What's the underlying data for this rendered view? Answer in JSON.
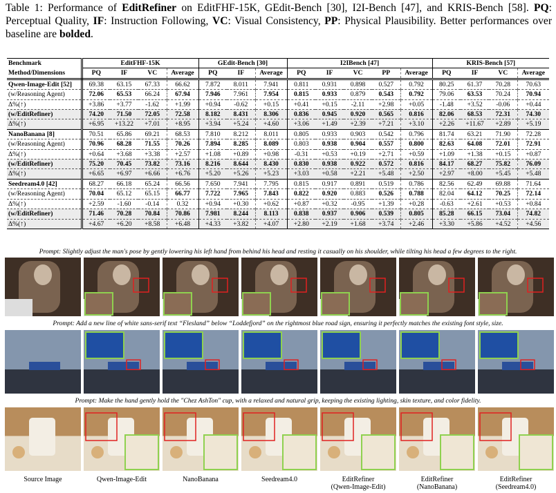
{
  "caption": {
    "parts": [
      {
        "text": "Table 1: Performance of "
      },
      {
        "text": "EditRefiner",
        "bold": true
      },
      {
        "text": " on EditFHF-15K, GEdit-Bench [30], I2I-Bench [47], and KRIS-Bench [58]. "
      },
      {
        "text": "PQ",
        "bold": true
      },
      {
        "text": ": Perceptual Quality, "
      },
      {
        "text": "IF",
        "bold": true
      },
      {
        "text": ": Instruction Following, "
      },
      {
        "text": "VC",
        "bold": true
      },
      {
        "text": ": Visual Consistency, "
      },
      {
        "text": "PP",
        "bold": true
      },
      {
        "text": ": Physical Plausibility. Better performances over baseline are "
      },
      {
        "text": "bolded",
        "bold": true
      },
      {
        "text": "."
      }
    ]
  },
  "table": {
    "label_top": "Benchmark",
    "label_bottom": "Method/Dimensions",
    "groups": [
      {
        "name": "EditFHF-15K",
        "columns": [
          "PQ",
          "IF",
          "VC",
          "Average"
        ]
      },
      {
        "name": "GEdit-Bench [30]",
        "columns": [
          "PQ",
          "IF",
          "Average"
        ]
      },
      {
        "name": "I2IBench [47]",
        "columns": [
          "PQ",
          "IF",
          "VC",
          "PP",
          "Average"
        ]
      },
      {
        "name": "KRIS-Bench [57]",
        "columns": [
          "PQ",
          "IF",
          "VC",
          "Average"
        ]
      }
    ],
    "sections": [
      {
        "rows": [
          {
            "label": "Qwen-Image-Edit [52]",
            "label_bold": true,
            "cells": [
              "69.38",
              "63.15",
              "67.33",
              "66.62",
              "7.872",
              "8.011",
              "7.941",
              "0.811",
              "0.931",
              "0.898",
              "0.527",
              "0.792",
              "80.25",
              "61.37",
              "70.28",
              "70.63"
            ]
          },
          {
            "label": "(w/Reasoning Agent)",
            "cells": [
              "72.06",
              "65.53",
              "66.24",
              "67.94",
              "7.946",
              "7.961",
              "7.954",
              "0.815",
              "0.933",
              "0.879",
              "0.543",
              "0.792",
              "79.06",
              "63.53",
              "70.24",
              "70.94"
            ],
            "bold": [
              true,
              true,
              false,
              true,
              true,
              false,
              true,
              true,
              true,
              false,
              true,
              true,
              false,
              true,
              false,
              true
            ]
          },
          {
            "label": "Δ%(↑)",
            "cells": [
              "+3.86",
              "+3.77",
              "-1.62",
              "+1.99",
              "+0.94",
              "-0.62",
              "+0.15",
              "+0.41",
              "+0.15",
              "-2.11",
              "+2.98",
              "+0.05",
              "-1.48",
              "+3.52",
              "-0.06",
              "+0.44"
            ]
          },
          {
            "label": "(w/EditRefiner)",
            "label_bold": true,
            "shaded": true,
            "cells": [
              "74.20",
              "71.50",
              "72.05",
              "72.58",
              "8.182",
              "8.431",
              "8.306",
              "0.836",
              "0.945",
              "0.920",
              "0.565",
              "0.816",
              "82.06",
              "68.53",
              "72.31",
              "74.30"
            ],
            "bold": [
              true,
              true,
              true,
              true,
              true,
              true,
              true,
              true,
              true,
              true,
              true,
              true,
              true,
              true,
              true,
              true
            ]
          },
          {
            "label": "Δ%(↑)",
            "shaded": true,
            "cells": [
              "+6.95",
              "+13.22",
              "+7.01",
              "+8.95",
              "+3.94",
              "+5.24",
              "+4.60",
              "+3.06",
              "+1.49",
              "+2.39",
              "+7.21",
              "+3.10",
              "+2.26",
              "+11.67",
              "+2.89",
              "+5.19"
            ]
          }
        ]
      },
      {
        "rows": [
          {
            "label": "NanoBanana [8]",
            "label_bold": true,
            "cells": [
              "70.51",
              "65.86",
              "69.21",
              "68.53",
              "7.810",
              "8.212",
              "8.011",
              "0.805",
              "0.933",
              "0.903",
              "0.542",
              "0.796",
              "81.74",
              "63.21",
              "71.90",
              "72.28"
            ]
          },
          {
            "label": "(w/Reasoning Agent)",
            "cells": [
              "70.96",
              "68.28",
              "71.55",
              "70.26",
              "7.894",
              "8.285",
              "8.089",
              "0.803",
              "0.938",
              "0.904",
              "0.557",
              "0.800",
              "82.63",
              "64.08",
              "72.01",
              "72.91"
            ],
            "bold": [
              true,
              true,
              true,
              true,
              true,
              true,
              true,
              false,
              true,
              true,
              true,
              true,
              true,
              true,
              true,
              true
            ]
          },
          {
            "label": "Δ%(↑)",
            "cells": [
              "+0.64",
              "+3.68",
              "+3.38",
              "+2.57",
              "+1.08",
              "+0.89",
              "+0.98",
              "-0.31",
              "+0.53",
              "+0.19",
              "+2.71",
              "+0.59",
              "+1.09",
              "+1.38",
              "+0.15",
              "+0.87"
            ]
          },
          {
            "label": "(w/EditRefiner)",
            "label_bold": true,
            "shaded": true,
            "cells": [
              "75.20",
              "70.45",
              "73.82",
              "73.16",
              "8.216",
              "8.644",
              "8.430",
              "0.830",
              "0.938",
              "0.922",
              "0.572",
              "0.816",
              "84.17",
              "68.27",
              "75.82",
              "76.09"
            ],
            "bold": [
              true,
              true,
              true,
              true,
              true,
              true,
              true,
              true,
              true,
              true,
              true,
              true,
              true,
              true,
              true,
              true
            ]
          },
          {
            "label": "Δ%(↑)",
            "shaded": true,
            "cells": [
              "+6.65",
              "+6.97",
              "+6.66",
              "+6.76",
              "+5.20",
              "+5.26",
              "+5.23",
              "+3.03",
              "+0.58",
              "+2.21",
              "+5.48",
              "+2.50",
              "+2.97",
              "+8.00",
              "+5.45",
              "+5.48"
            ]
          }
        ]
      },
      {
        "rows": [
          {
            "label": "Seedream4.0 [42]",
            "label_bold": true,
            "cells": [
              "68.27",
              "66.18",
              "65.24",
              "66.56",
              "7.650",
              "7.941",
              "7.795",
              "0.815",
              "0.917",
              "0.891",
              "0.519",
              "0.786",
              "82.56",
              "62.49",
              "69.88",
              "71.64"
            ]
          },
          {
            "label": "(w/Reasoning Agent)",
            "cells": [
              "70.04",
              "65.12",
              "65.15",
              "66.77",
              "7.722",
              "7.965",
              "7.843",
              "0.822",
              "0.920",
              "0.883",
              "0.526",
              "0.788",
              "82.04",
              "64.12",
              "70.25",
              "72.14"
            ],
            "bold": [
              true,
              false,
              false,
              true,
              true,
              true,
              true,
              true,
              true,
              false,
              true,
              true,
              false,
              true,
              true,
              true
            ]
          },
          {
            "label": "Δ%(↑)",
            "cells": [
              "+2.59",
              "-1.60",
              "-0.14",
              "0.32",
              "+0.94",
              "+0.30",
              "+0.62",
              "+0.87",
              "+0.32",
              "-0.95",
              "+1.39",
              "+0.28",
              "-0.63",
              "+2.61",
              "+0.53",
              "+0.84"
            ]
          },
          {
            "label": "(w/EditRefiner)",
            "label_bold": true,
            "shaded": true,
            "cells": [
              "71.46",
              "70.28",
              "70.84",
              "70.86",
              "7.981",
              "8.244",
              "8.113",
              "0.838",
              "0.937",
              "0.906",
              "0.539",
              "0.805",
              "85.28",
              "66.15",
              "73.04",
              "74.82"
            ],
            "bold": [
              true,
              true,
              true,
              true,
              true,
              true,
              true,
              true,
              true,
              true,
              true,
              true,
              true,
              true,
              true,
              true
            ]
          },
          {
            "label": "Δ%(↑)",
            "shaded": true,
            "cells": [
              "+4.67",
              "+6.20",
              "+8.58",
              "+6.48",
              "+4.33",
              "+3.82",
              "+4.07",
              "+2.80",
              "+2.19",
              "+1.68",
              "+3.74",
              "+2.46",
              "+3.30",
              "+5.86",
              "+4.52",
              "+4.56"
            ]
          }
        ]
      }
    ]
  },
  "figure": {
    "examples": [
      {
        "prompt": "Prompt: Slightly adjust the man's pose by gently lowering his left hand from behind his head and resting it casually on his shoulder, while tilting his head a few degrees to the right."
      },
      {
        "prompt": "Prompt: Add a new line of white sans-serif text “Flesland” below “Loddefjord” on the rightmost blue road sign, ensuring it perfectly matches the existing font style, size."
      },
      {
        "prompt": "Prompt: Make the hand gently hold the \"Chez AshTon\" cup, with a relaxed and natural grip, keeping the existing lighting, skin texture, and color fidelity."
      }
    ],
    "labels": [
      [
        "Source Image"
      ],
      [
        "Qwen-Image-Edit"
      ],
      [
        "NanoBanana"
      ],
      [
        "Seedream4.0"
      ],
      [
        "EditRefiner",
        "(Qwen-Image-Edit)"
      ],
      [
        "EditRefiner",
        "(NanoBanana)"
      ],
      [
        "EditRefiner",
        "(Seedream4.0)"
      ]
    ]
  }
}
